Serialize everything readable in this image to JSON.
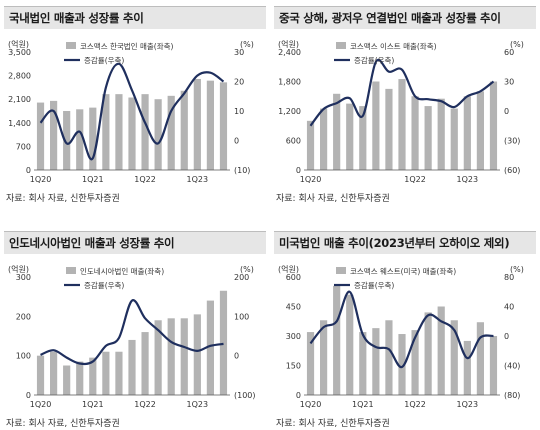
{
  "chart_data": [
    {
      "type": "bar",
      "title": "국내법인 매출과 성장률 추이",
      "left_unit": "(억원)",
      "right_unit": "(%)",
      "source": "자료: 회사 자료, 신한투자증권",
      "x_tick_labels": [
        "1Q20",
        "1Q21",
        "1Q22",
        "1Q23"
      ],
      "x_tick_index": [
        0,
        4,
        8,
        12
      ],
      "bar_series_name": "코스맥스 한국법인 매출(좌축)",
      "line_series_name": "증감률(우축)",
      "left_ylim": [
        0,
        3500
      ],
      "left_ticks": [
        "0",
        "700",
        "1,400",
        "2,100",
        "2,800",
        "3,500"
      ],
      "right_ylim": [
        -10,
        30
      ],
      "right_ticks": [
        "(10)",
        "0",
        "10",
        "20",
        "30"
      ],
      "bar_values": [
        2000,
        2050,
        1750,
        1800,
        1850,
        2250,
        2250,
        2150,
        2250,
        2100,
        2200,
        2350,
        2700,
        2650,
        2600
      ],
      "line_values": [
        6,
        10,
        -1,
        3,
        -6,
        18,
        26,
        17,
        6,
        -1,
        10,
        16,
        22,
        23,
        20
      ]
    },
    {
      "type": "bar",
      "title": "중국 상해, 광저우 연결법인 매출과 성장률 추이",
      "left_unit": "(억원)",
      "right_unit": "(%)",
      "source": "자료: 회사 자료, 신한투자증권",
      "x_tick_labels": [
        "1Q20",
        "1Q22",
        "1Q23"
      ],
      "x_tick_index": [
        0,
        8,
        12
      ],
      "bar_series_name": "코스맥스 이스트 매출(좌축)",
      "line_series_name": "증감률(우축)",
      "left_ylim": [
        0,
        2400
      ],
      "left_ticks": [
        "0",
        "600",
        "1,200",
        "1,800",
        "2,400"
      ],
      "right_ylim": [
        -60,
        60
      ],
      "right_ticks": [
        "(60)",
        "(30)",
        "0",
        "30",
        "60"
      ],
      "bar_values": [
        1000,
        1250,
        1550,
        1350,
        1300,
        1800,
        1650,
        1850,
        1500,
        1300,
        1450,
        1250,
        1500,
        1600,
        1800
      ],
      "line_values": [
        -15,
        2,
        8,
        13,
        -5,
        50,
        40,
        42,
        15,
        12,
        10,
        4,
        15,
        20,
        30
      ]
    },
    {
      "type": "bar",
      "title": "인도네시아법인 매출과 성장률 추이",
      "left_unit": "(억원)",
      "right_unit": "(%)",
      "source": "자료: 회사 자료, 신한투자증권",
      "x_tick_labels": [
        "1Q20",
        "1Q21",
        "1Q22",
        "1Q23"
      ],
      "x_tick_index": [
        0,
        4,
        8,
        12
      ],
      "bar_series_name": "인도네시아법인 매출(좌축)",
      "line_series_name": "증감률(우축)",
      "left_ylim": [
        0,
        300
      ],
      "left_ticks": [
        "0",
        "100",
        "200",
        "300"
      ],
      "right_ylim": [
        -100,
        200
      ],
      "right_ticks": [
        "(100)",
        "0",
        "100",
        "200"
      ],
      "bar_values": [
        100,
        110,
        75,
        85,
        95,
        110,
        110,
        140,
        160,
        190,
        195,
        195,
        205,
        240,
        265
      ],
      "line_values": [
        2,
        14,
        -5,
        -20,
        -15,
        25,
        45,
        140,
        95,
        65,
        35,
        22,
        12,
        25,
        30
      ]
    },
    {
      "type": "bar",
      "title": "미국법인 매출 추이(2023년부터 오하이오 제외)",
      "left_unit": "(억원)",
      "right_unit": "(%)",
      "source": "자료: 회사 자료, 신한투자증권",
      "x_tick_labels": [
        "1Q20",
        "1Q21",
        "1Q22",
        "1Q23"
      ],
      "x_tick_index": [
        0,
        4,
        8,
        12
      ],
      "bar_series_name": "코스맥스 웨스트(미국) 매출(좌축)",
      "line_series_name": "증감률(우축)",
      "left_ylim": [
        0,
        600
      ],
      "left_ticks": [
        "0",
        "150",
        "300",
        "450",
        "600"
      ],
      "right_ylim": [
        -80,
        80
      ],
      "right_ticks": [
        "(80)",
        "(40)",
        "0",
        "40",
        "80"
      ],
      "bar_values": [
        320,
        380,
        555,
        510,
        320,
        340,
        380,
        310,
        330,
        420,
        450,
        380,
        275,
        370,
        300
      ],
      "line_values": [
        -10,
        12,
        20,
        60,
        2,
        -15,
        -18,
        -42,
        -2,
        28,
        20,
        8,
        -30,
        -2,
        0
      ]
    }
  ]
}
